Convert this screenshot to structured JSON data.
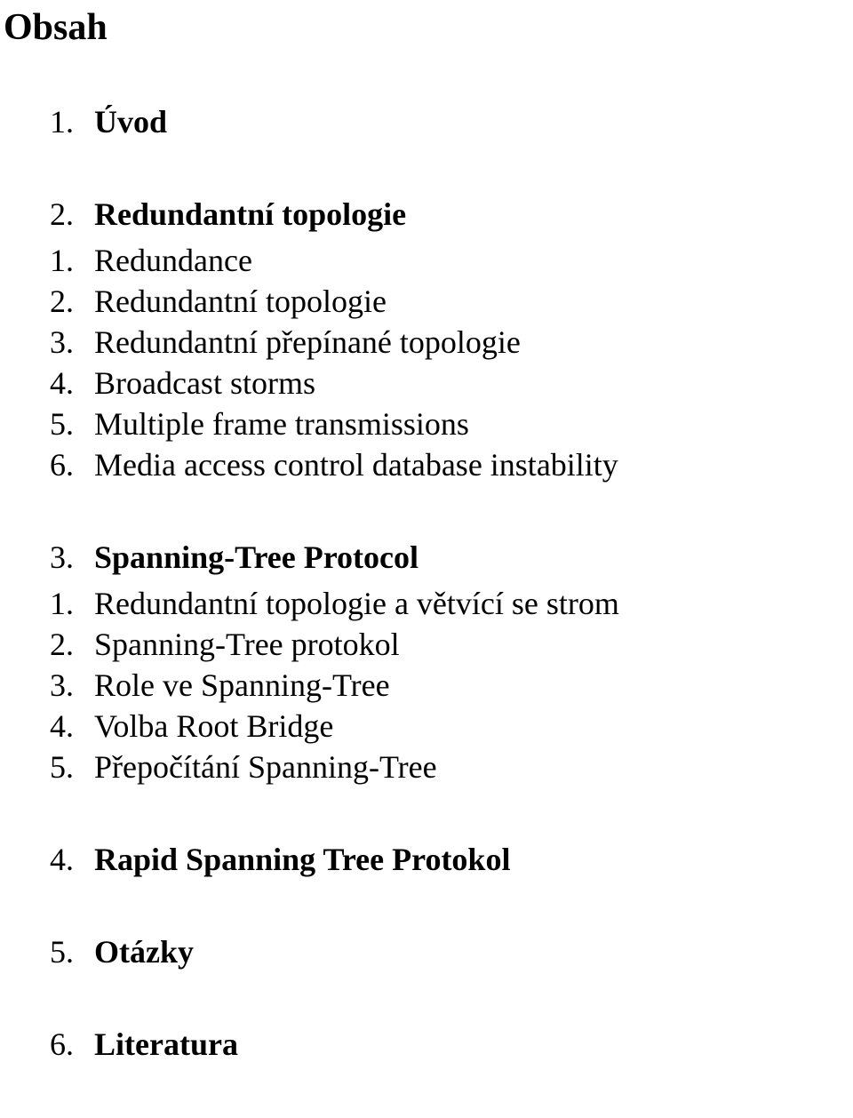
{
  "title": "Obsah",
  "sections": [
    {
      "num": "1.",
      "title": "Úvod",
      "items": []
    },
    {
      "num": "2.",
      "title": "Redundantní topologie",
      "items": [
        {
          "num": "1.",
          "text": "Redundance"
        },
        {
          "num": "2.",
          "text": "Redundantní topologie"
        },
        {
          "num": "3.",
          "text": "Redundantní přepínané topologie"
        },
        {
          "num": "4.",
          "text": "Broadcast storms"
        },
        {
          "num": "5.",
          "text": "Multiple frame transmissions"
        },
        {
          "num": "6.",
          "text": "Media access control database instability"
        }
      ]
    },
    {
      "num": "3.",
      "title": "Spanning-Tree Protocol",
      "items": [
        {
          "num": "1.",
          "text": "Redundantní topologie a větvící se strom"
        },
        {
          "num": "2.",
          "text": "Spanning-Tree protokol"
        },
        {
          "num": "3.",
          "text": "Role ve Spanning-Tree"
        },
        {
          "num": "4.",
          "text": "Volba Root Bridge"
        },
        {
          "num": "5.",
          "text": "Přepočítání Spanning-Tree"
        }
      ]
    },
    {
      "num": "4.",
      "title": "Rapid Spanning Tree Protokol",
      "items": []
    },
    {
      "num": "5.",
      "title": "Otázky",
      "items": []
    },
    {
      "num": "6.",
      "title": "Literatura",
      "items": []
    }
  ],
  "style": {
    "background_color": "#ffffff",
    "text_color": "#000000",
    "font_family": "Times New Roman",
    "title_fontsize": 42,
    "section_fontsize": 36,
    "item_fontsize": 36,
    "title_fontweight": "bold",
    "section_fontweight": "bold",
    "item_fontweight": "normal"
  }
}
